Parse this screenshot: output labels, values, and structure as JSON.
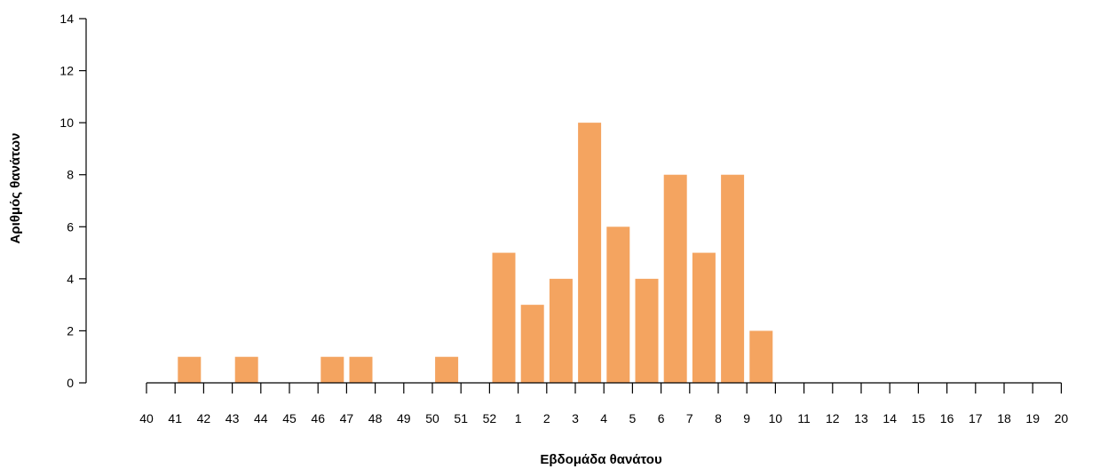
{
  "chart_data": {
    "type": "bar",
    "title": "",
    "xlabel": "Εβδομάδα θανάτου",
    "ylabel": "Αριθμός θανάτων",
    "ylim": [
      0,
      14
    ],
    "yticks": [
      0,
      2,
      4,
      6,
      8,
      10,
      12,
      14
    ],
    "grid": false,
    "bar_color": "#f4a460",
    "categories": [
      "40",
      "41",
      "42",
      "43",
      "44",
      "45",
      "46",
      "47",
      "48",
      "49",
      "50",
      "51",
      "52",
      "1",
      "2",
      "3",
      "4",
      "5",
      "6",
      "7",
      "8",
      "9",
      "10",
      "11",
      "12",
      "13",
      "14",
      "15",
      "16",
      "17",
      "18",
      "19",
      "20"
    ],
    "values": [
      0,
      1,
      0,
      1,
      0,
      0,
      1,
      1,
      0,
      0,
      1,
      0,
      5,
      3,
      4,
      10,
      6,
      4,
      8,
      5,
      8,
      2,
      0,
      0,
      0,
      0,
      0,
      0,
      0,
      0,
      0,
      0,
      0
    ]
  }
}
